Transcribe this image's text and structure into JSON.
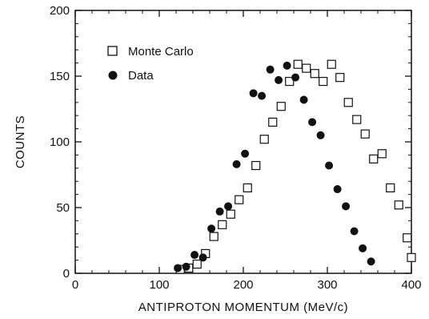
{
  "chart_data": {
    "type": "scatter",
    "title": "",
    "xlabel": "ANTIPROTON MOMENTUM (MeV/c)",
    "ylabel": "COUNTS",
    "xlim": [
      0,
      400
    ],
    "ylim": [
      0,
      200
    ],
    "xticks": [
      0,
      100,
      200,
      300,
      400
    ],
    "yticks": [
      0,
      50,
      100,
      150,
      200
    ],
    "grid": false,
    "legend_position": "top-left",
    "series": [
      {
        "name": "Monte Carlo",
        "marker": "open-square",
        "x": [
          125,
          135,
          145,
          155,
          165,
          175,
          185,
          195,
          205,
          215,
          225,
          235,
          245,
          255,
          265,
          275,
          285,
          295,
          305,
          315,
          325,
          335,
          345,
          355,
          365,
          375,
          385,
          395,
          400
        ],
        "y": [
          3,
          4,
          7,
          15,
          28,
          37,
          45,
          56,
          65,
          82,
          102,
          115,
          127,
          146,
          159,
          156,
          152,
          146,
          159,
          149,
          130,
          117,
          106,
          87,
          91,
          65,
          52,
          27,
          12
        ]
      },
      {
        "name": "Data",
        "marker": "filled-circle",
        "x": [
          122,
          132,
          142,
          152,
          162,
          172,
          182,
          192,
          202,
          212,
          222,
          232,
          242,
          252,
          262,
          272,
          282,
          292,
          302,
          312,
          322,
          332,
          342,
          352
        ],
        "y": [
          4,
          5,
          14,
          12,
          34,
          47,
          51,
          83,
          91,
          137,
          135,
          155,
          147,
          158,
          149,
          132,
          115,
          105,
          82,
          64,
          51,
          32,
          19,
          9
        ]
      }
    ]
  }
}
